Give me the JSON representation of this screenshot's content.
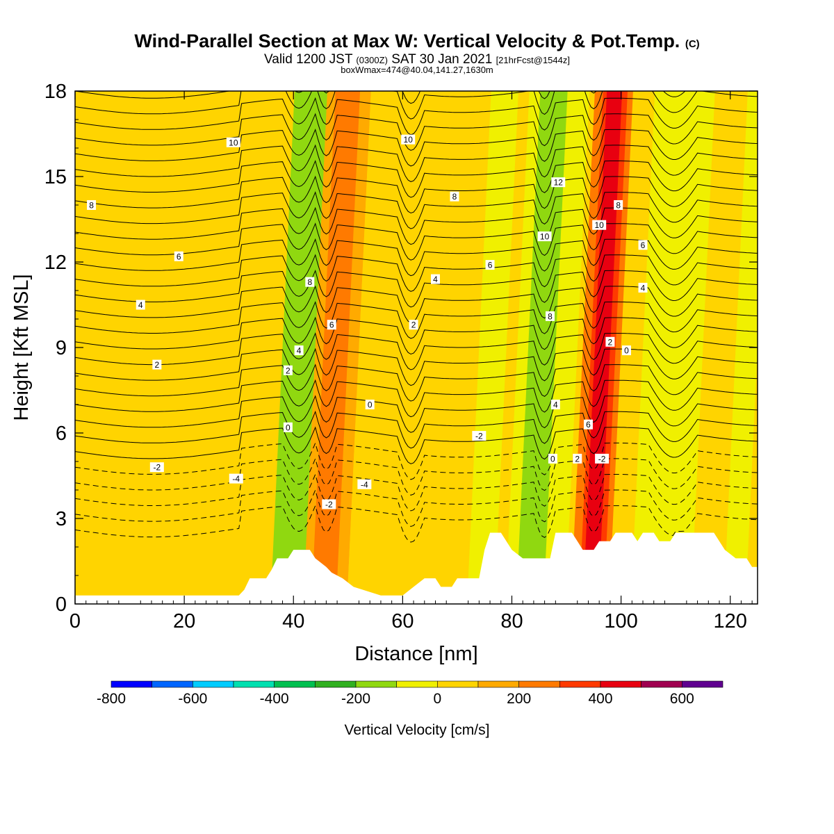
{
  "header": {
    "title": "Wind-Parallel Section at Max W: Vertical Velocity & Pot.Temp.",
    "title_tag": "(C)",
    "valid_prefix": "Valid 1200 JST",
    "valid_z": "(0300Z)",
    "valid_date": "SAT 30 Jan 2021",
    "valid_fcst": "[21hrFcst@1544z]",
    "box_line": "boxWmax=474@40.04,141.27,1630m"
  },
  "chart_data": {
    "type": "heatmap",
    "xlabel": "Distance [nm]",
    "ylabel": "Height [Kft MSL]",
    "xlim": [
      0,
      125
    ],
    "ylim": [
      0,
      18
    ],
    "xticks": [
      0,
      20,
      40,
      60,
      80,
      100,
      120
    ],
    "yticks": [
      0,
      3,
      6,
      9,
      12,
      15,
      18
    ],
    "colorbar": {
      "label": "Vertical Velocity [cm/s]",
      "bounds": [
        -800,
        700
      ],
      "tick_values": [
        -800,
        -600,
        -400,
        -200,
        0,
        200,
        400,
        600
      ],
      "tick_labels": [
        "-800",
        "-600",
        "-400",
        "-200",
        "0",
        "200",
        "400",
        "600"
      ],
      "colors": [
        "#0000ff",
        "#0066ff",
        "#00ccff",
        "#00e0b0",
        "#00c050",
        "#30b020",
        "#90d810",
        "#f0f000",
        "#ffd400",
        "#ffaa00",
        "#ff7a00",
        "#ff3a00",
        "#e80010",
        "#a00050",
        "#600090"
      ]
    },
    "fill_bands": [
      {
        "level": 0,
        "x0": 0,
        "x1": 125
      },
      {
        "level": 0,
        "x0": 30,
        "x1": 44
      },
      {
        "level": -200,
        "x0": 38,
        "x1": 45
      },
      {
        "level": 100,
        "x0": 44,
        "x1": 52
      },
      {
        "level": 200,
        "x0": 45.5,
        "x1": 50
      },
      {
        "level": 0,
        "x0": 52,
        "x1": 75
      },
      {
        "level": -100,
        "x0": 74,
        "x1": 79
      },
      {
        "level": -100,
        "x0": 81,
        "x1": 92
      },
      {
        "level": -200,
        "x0": 83,
        "x1": 88
      },
      {
        "level": 200,
        "x0": 93,
        "x1": 100
      },
      {
        "level": 300,
        "x0": 94.5,
        "x1": 99
      },
      {
        "level": 400,
        "x0": 95.2,
        "x1": 98
      },
      {
        "level": -100,
        "x0": 104,
        "x1": 115
      },
      {
        "level": -100,
        "x0": 121,
        "x1": 125
      }
    ],
    "contour_labels": [
      {
        "text": "10",
        "x": 29,
        "y": 16.2
      },
      {
        "text": "10",
        "x": 61,
        "y": 16.3
      },
      {
        "text": "8",
        "x": 3,
        "y": 14.0
      },
      {
        "text": "8",
        "x": 69.5,
        "y": 14.3
      },
      {
        "text": "12",
        "x": 88.5,
        "y": 14.8
      },
      {
        "text": "8",
        "x": 99.5,
        "y": 14.0
      },
      {
        "text": "10",
        "x": 96,
        "y": 13.3
      },
      {
        "text": "10",
        "x": 86,
        "y": 12.9
      },
      {
        "text": "6",
        "x": 104,
        "y": 12.6
      },
      {
        "text": "6",
        "x": 19,
        "y": 12.2
      },
      {
        "text": "8",
        "x": 43,
        "y": 11.3
      },
      {
        "text": "6",
        "x": 76,
        "y": 11.9
      },
      {
        "text": "4",
        "x": 66,
        "y": 11.4
      },
      {
        "text": "4",
        "x": 104,
        "y": 11.1
      },
      {
        "text": "4",
        "x": 12,
        "y": 10.5
      },
      {
        "text": "8",
        "x": 87,
        "y": 10.1
      },
      {
        "text": "6",
        "x": 47,
        "y": 9.8
      },
      {
        "text": "2",
        "x": 62,
        "y": 9.8
      },
      {
        "text": "2",
        "x": 98,
        "y": 9.2
      },
      {
        "text": "0",
        "x": 101,
        "y": 8.9
      },
      {
        "text": "4",
        "x": 41,
        "y": 8.9
      },
      {
        "text": "2",
        "x": 15,
        "y": 8.4
      },
      {
        "text": "2",
        "x": 39,
        "y": 8.2
      },
      {
        "text": "0",
        "x": 54,
        "y": 7.0
      },
      {
        "text": "4",
        "x": 88,
        "y": 7.0
      },
      {
        "text": "6",
        "x": 94,
        "y": 6.3
      },
      {
        "text": "0",
        "x": 39,
        "y": 6.2
      },
      {
        "text": "-2",
        "x": 74,
        "y": 5.9
      },
      {
        "text": "0",
        "x": 87.5,
        "y": 5.1
      },
      {
        "text": "2",
        "x": 92,
        "y": 5.1
      },
      {
        "text": "-2",
        "x": 96.5,
        "y": 5.1
      },
      {
        "text": "-2",
        "x": 15,
        "y": 4.8
      },
      {
        "text": "-4",
        "x": 29.5,
        "y": 4.4
      },
      {
        "text": "-4",
        "x": 53,
        "y": 4.2
      },
      {
        "text": "-2",
        "x": 46.5,
        "y": 3.5
      }
    ],
    "terrain": [
      [
        0,
        0.3
      ],
      [
        30,
        0.3
      ],
      [
        31,
        0.5
      ],
      [
        32,
        0.9
      ],
      [
        35,
        0.9
      ],
      [
        36,
        1.2
      ],
      [
        37,
        1.6
      ],
      [
        39,
        1.6
      ],
      [
        40,
        1.9
      ],
      [
        43,
        1.9
      ],
      [
        44,
        1.6
      ],
      [
        46,
        1.3
      ],
      [
        47,
        1.1
      ],
      [
        49,
        0.9
      ],
      [
        51,
        0.6
      ],
      [
        56,
        0.3
      ],
      [
        60,
        0.3
      ],
      [
        62,
        0.6
      ],
      [
        64,
        0.9
      ],
      [
        66,
        0.9
      ],
      [
        67,
        0.6
      ],
      [
        69,
        0.6
      ],
      [
        70,
        0.9
      ],
      [
        74,
        0.9
      ],
      [
        75,
        1.9
      ],
      [
        76,
        2.5
      ],
      [
        78,
        2.5
      ],
      [
        79,
        2.2
      ],
      [
        80,
        1.9
      ],
      [
        82,
        1.6
      ],
      [
        87,
        1.6
      ],
      [
        88,
        2.5
      ],
      [
        91,
        2.5
      ],
      [
        92,
        2.2
      ],
      [
        93,
        1.9
      ],
      [
        95,
        1.9
      ],
      [
        96,
        2.2
      ],
      [
        98,
        2.2
      ],
      [
        99,
        2.5
      ],
      [
        102,
        2.5
      ],
      [
        103,
        2.2
      ],
      [
        104,
        2.5
      ],
      [
        106,
        2.5
      ],
      [
        107,
        2.2
      ],
      [
        109,
        2.2
      ],
      [
        110,
        2.5
      ],
      [
        117,
        2.5
      ],
      [
        118,
        2.2
      ],
      [
        119,
        1.9
      ],
      [
        121,
        1.6
      ],
      [
        123,
        1.6
      ],
      [
        124,
        1.3
      ],
      [
        125,
        1.3
      ]
    ]
  }
}
